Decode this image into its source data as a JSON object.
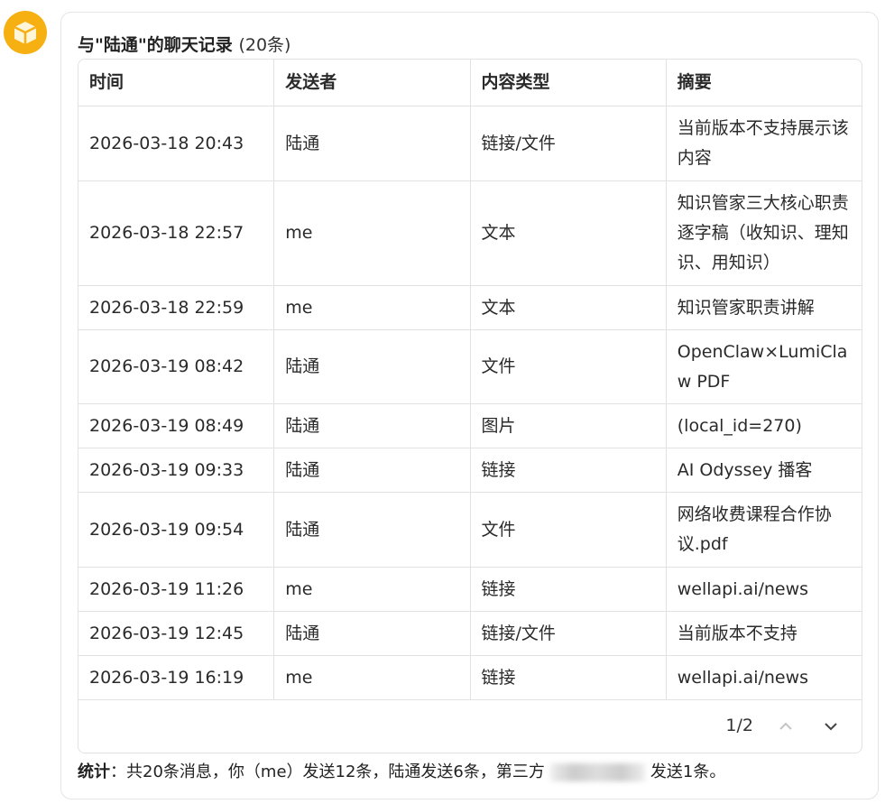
{
  "title": "与\"陆通\"的聊天记录",
  "count": "(20条)",
  "columns": [
    "时间",
    "发送者",
    "内容类型",
    "摘要"
  ],
  "rows": [
    [
      "2026-03-18 20:43",
      "陆通",
      "链接/文件",
      "当前版本不支持展示该内容"
    ],
    [
      "2026-03-18 22:57",
      "me",
      "文本",
      "知识管家三大核心职责逐字稿（收知识、理知识、用知识）"
    ],
    [
      "2026-03-18 22:59",
      "me",
      "文本",
      "知识管家职责讲解"
    ],
    [
      "2026-03-19 08:42",
      "陆通",
      "文件",
      "OpenClaw×LumiClaw PDF"
    ],
    [
      "2026-03-19 08:49",
      "陆通",
      "图片",
      "(local_id=270)"
    ],
    [
      "2026-03-19 09:33",
      "陆通",
      "链接",
      "AI Odyssey 播客"
    ],
    [
      "2026-03-19 09:54",
      "陆通",
      "文件",
      "网络收费课程合作协议.pdf"
    ],
    [
      "2026-03-19 11:26",
      "me",
      "链接",
      "wellapi.ai/news"
    ],
    [
      "2026-03-19 12:45",
      "陆通",
      "链接/文件",
      "当前版本不支持"
    ],
    [
      "2026-03-19 16:19",
      "me",
      "链接",
      "wellapi.ai/news"
    ]
  ],
  "pager": {
    "page": "1/2",
    "prev_icon": "chevron-up-icon",
    "next_icon": "chevron-down-icon"
  },
  "stats": {
    "label": "统计",
    "text": "：共20条消息，你（me）发送12条，陆通发送6条，第三方",
    "tail": "发送1条。"
  },
  "colors": {
    "avatar": "#f6b012"
  }
}
